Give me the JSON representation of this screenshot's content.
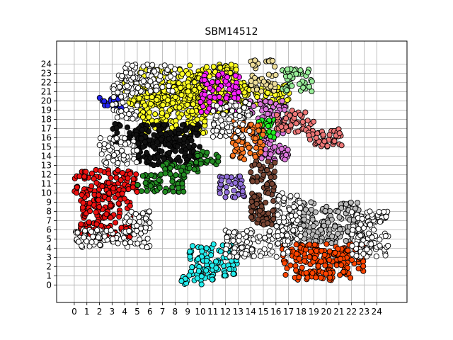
{
  "chart_data": {
    "type": "scatter",
    "title": "SBM14512",
    "xlabel": "",
    "ylabel": "",
    "xlim": [
      -1.4,
      26.4
    ],
    "ylim": [
      -1.9,
      26.5
    ],
    "xticks": [
      0,
      1,
      2,
      3,
      4,
      5,
      6,
      7,
      8,
      9,
      10,
      11,
      12,
      13,
      14,
      15,
      16,
      17,
      18,
      19,
      20,
      21,
      22,
      23,
      24
    ],
    "yticks": [
      0,
      1,
      2,
      3,
      4,
      5,
      6,
      7,
      8,
      9,
      10,
      11,
      12,
      13,
      14,
      15,
      16,
      17,
      18,
      19,
      20,
      21,
      22,
      23,
      24
    ],
    "grid": true,
    "marker_edge_color": "#000000",
    "clusters": [
      {
        "color": "#ffff22",
        "regions": [
          [
            3.8,
            17.2,
            19.5,
            22
          ],
          [
            5,
            10.5,
            16.5,
            23.5
          ],
          [
            9,
            13,
            18.5,
            24
          ]
        ]
      },
      {
        "color": "#ff22ff",
        "regions": [
          [
            10,
            13.2,
            18.8,
            23
          ]
        ]
      },
      {
        "color": "#111111",
        "regions": [
          [
            3,
            10,
            15.5,
            17.5
          ],
          [
            5,
            10,
            13,
            16
          ]
        ]
      },
      {
        "color": "#2222ee",
        "regions": [
          [
            2,
            4,
            19.2,
            20.4
          ]
        ]
      },
      {
        "color": "#ee1111",
        "regions": [
          [
            0,
            5,
            10,
            12.5
          ],
          [
            0.5,
            4.5,
            5,
            10
          ]
        ]
      },
      {
        "color": "#228b22",
        "regions": [
          [
            5,
            9,
            10,
            12
          ],
          [
            6.5,
            10,
            12,
            13.5
          ],
          [
            9.5,
            11.5,
            13,
            14.5
          ]
        ]
      },
      {
        "color": "#9370db",
        "regions": [
          [
            11.5,
            13.5,
            9.5,
            12
          ]
        ]
      },
      {
        "color": "#eedd99",
        "regions": [
          [
            14,
            16,
            21,
            24.5
          ]
        ]
      },
      {
        "color": "#99ee99",
        "regions": [
          [
            16.5,
            19,
            21,
            23.5
          ]
        ]
      },
      {
        "color": "#dd77dd",
        "regions": [
          [
            13.5,
            17,
            18,
            20
          ],
          [
            14.5,
            17,
            13.5,
            16.5
          ]
        ]
      },
      {
        "color": "#22ee22",
        "regions": [
          [
            14.5,
            16,
            16,
            18
          ]
        ]
      },
      {
        "color": "#ff7722",
        "regions": [
          [
            12.5,
            15,
            13.5,
            18
          ]
        ]
      },
      {
        "color": "#774433",
        "regions": [
          [
            14,
            16,
            6.5,
            13.5
          ]
        ]
      },
      {
        "color": "#ee7777",
        "regions": [
          [
            16,
            19,
            16.5,
            19
          ],
          [
            18.5,
            21.5,
            15,
            17
          ]
        ]
      },
      {
        "color": "#bbbbbb",
        "regions": [
          [
            17,
            23,
            4.5,
            9
          ]
        ]
      },
      {
        "color": "#ff4400",
        "regions": [
          [
            16.5,
            23,
            1,
            4.5
          ],
          [
            17.5,
            22,
            0.5,
            1.5
          ]
        ]
      },
      {
        "color": "#22eeee",
        "regions": [
          [
            9,
            13,
            1,
            4.5
          ],
          [
            8.5,
            11,
            0,
            1
          ]
        ]
      },
      {
        "color": "#ffffff",
        "regions": [
          [
            0,
            4,
            4,
            6
          ],
          [
            2,
            5,
            13,
            16
          ],
          [
            4,
            6,
            4,
            8
          ],
          [
            16,
            18,
            5,
            10
          ],
          [
            12,
            17,
            3,
            6
          ],
          [
            22,
            25,
            3,
            8
          ],
          [
            3,
            5,
            18,
            23
          ],
          [
            11,
            14,
            16,
            20
          ],
          [
            4,
            8,
            21,
            24
          ]
        ]
      }
    ]
  }
}
